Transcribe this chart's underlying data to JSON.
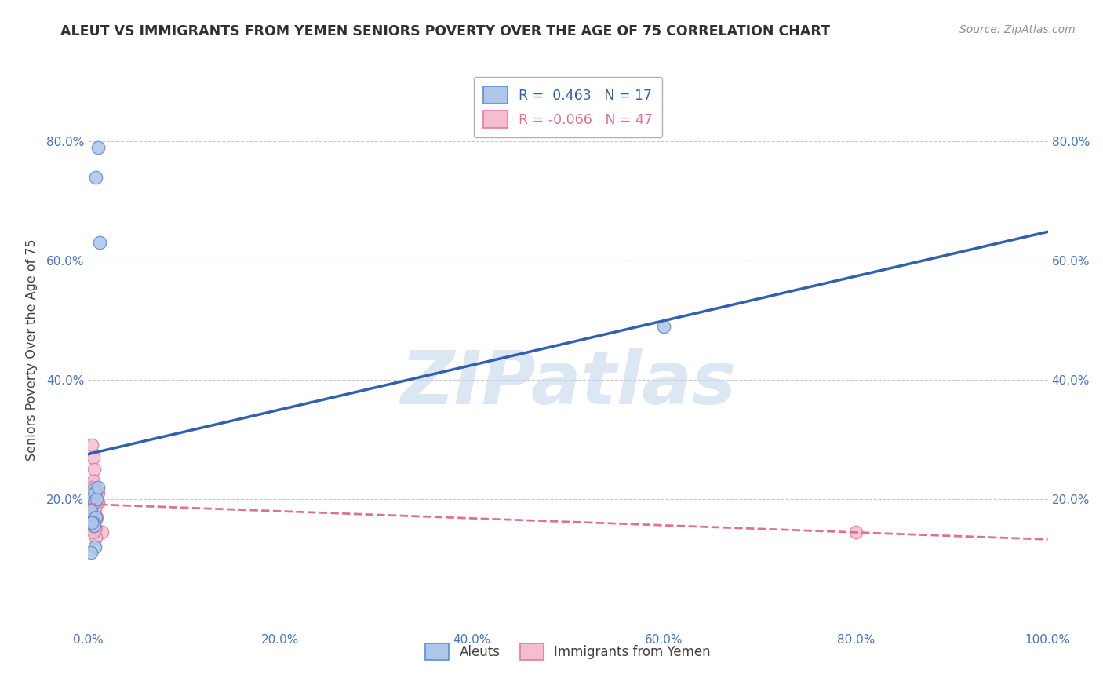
{
  "title": "ALEUT VS IMMIGRANTS FROM YEMEN SENIORS POVERTY OVER THE AGE OF 75 CORRELATION CHART",
  "source": "Source: ZipAtlas.com",
  "ylabel": "Seniors Poverty Over the Age of 75",
  "watermark": "ZIPatlas",
  "legend_labels": [
    "Aleuts",
    "Immigrants from Yemen"
  ],
  "r_aleut": 0.463,
  "n_aleut": 17,
  "r_yemen": -0.066,
  "n_yemen": 47,
  "blue_scatter_color": "#aec6e8",
  "pink_scatter_color": "#f5bdd0",
  "blue_edge_color": "#5b8fd4",
  "pink_edge_color": "#e8799a",
  "blue_line_color": "#3060b0",
  "pink_line_color": "#e07090",
  "background_color": "#ffffff",
  "grid_color": "#c8c8c8",
  "title_color": "#303030",
  "axis_label_color": "#404040",
  "tick_color": "#4472c4",
  "source_color": "#909090",
  "watermark_color": "#c5d8ee",
  "xlim": [
    0.0,
    1.0
  ],
  "ylim": [
    -0.02,
    0.92
  ],
  "xticks": [
    0.0,
    0.2,
    0.4,
    0.6,
    0.8,
    1.0
  ],
  "yticks": [
    0.2,
    0.4,
    0.6,
    0.8
  ],
  "xtick_labels": [
    "0.0%",
    "20.0%",
    "40.0%",
    "60.0%",
    "80.0%",
    "100.0%"
  ],
  "ytick_labels": [
    "20.0%",
    "40.0%",
    "60.0%",
    "80.0%"
  ],
  "aleut_x": [
    0.008,
    0.012,
    0.005,
    0.004,
    0.006,
    0.007,
    0.009,
    0.01,
    0.003,
    0.008,
    0.005,
    0.006,
    0.01,
    0.6,
    0.007,
    0.004,
    0.003
  ],
  "aleut_y": [
    0.74,
    0.63,
    0.215,
    0.2,
    0.195,
    0.21,
    0.2,
    0.22,
    0.18,
    0.17,
    0.16,
    0.155,
    0.79,
    0.49,
    0.12,
    0.16,
    0.11
  ],
  "yemen_x": [
    0.004,
    0.005,
    0.006,
    0.003,
    0.003,
    0.006,
    0.004,
    0.005,
    0.006,
    0.007,
    0.003,
    0.006,
    0.005,
    0.005,
    0.004,
    0.006,
    0.005,
    0.008,
    0.009,
    0.01,
    0.006,
    0.005,
    0.004,
    0.004,
    0.007,
    0.009,
    0.008,
    0.005,
    0.006,
    0.004,
    0.01,
    0.014,
    0.005,
    0.008,
    0.007,
    0.005,
    0.005,
    0.004,
    0.007,
    0.008,
    0.8,
    0.005,
    0.004,
    0.007,
    0.005,
    0.004,
    0.007
  ],
  "yemen_y": [
    0.29,
    0.27,
    0.25,
    0.22,
    0.215,
    0.225,
    0.2,
    0.195,
    0.205,
    0.215,
    0.195,
    0.185,
    0.205,
    0.23,
    0.22,
    0.195,
    0.21,
    0.2,
    0.205,
    0.21,
    0.18,
    0.195,
    0.205,
    0.175,
    0.19,
    0.17,
    0.15,
    0.165,
    0.18,
    0.17,
    0.195,
    0.145,
    0.16,
    0.135,
    0.15,
    0.145,
    0.165,
    0.19,
    0.17,
    0.165,
    0.145,
    0.18,
    0.19,
    0.17,
    0.155,
    0.16,
    0.185
  ]
}
